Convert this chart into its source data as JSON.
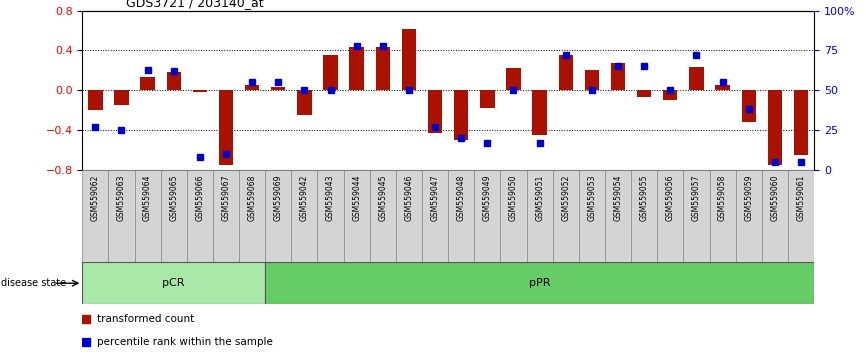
{
  "title": "GDS3721 / 203140_at",
  "samples": [
    "GSM559062",
    "GSM559063",
    "GSM559064",
    "GSM559065",
    "GSM559066",
    "GSM559067",
    "GSM559068",
    "GSM559069",
    "GSM559042",
    "GSM559043",
    "GSM559044",
    "GSM559045",
    "GSM559046",
    "GSM559047",
    "GSM559048",
    "GSM559049",
    "GSM559050",
    "GSM559051",
    "GSM559052",
    "GSM559053",
    "GSM559054",
    "GSM559055",
    "GSM559056",
    "GSM559057",
    "GSM559058",
    "GSM559059",
    "GSM559060",
    "GSM559061"
  ],
  "bar_values": [
    -0.2,
    -0.15,
    0.13,
    0.18,
    -0.02,
    -0.75,
    0.05,
    0.03,
    -0.25,
    0.35,
    0.43,
    0.43,
    0.62,
    -0.43,
    -0.5,
    -0.18,
    0.22,
    -0.45,
    0.35,
    0.2,
    0.27,
    -0.07,
    -0.1,
    0.23,
    0.05,
    -0.32,
    -0.75,
    -0.65
  ],
  "percentile_values": [
    27,
    25,
    63,
    62,
    8,
    10,
    55,
    55,
    50,
    50,
    78,
    78,
    50,
    27,
    20,
    17,
    50,
    17,
    72,
    50,
    65,
    65,
    50,
    72,
    55,
    38,
    5,
    5
  ],
  "groups": [
    {
      "label": "pCR",
      "start": 0,
      "end": 7,
      "color": "#aae8aa"
    },
    {
      "label": "pPR",
      "start": 7,
      "end": 28,
      "color": "#66cc66"
    }
  ],
  "ylim": [
    -0.8,
    0.8
  ],
  "yticks": [
    -0.8,
    -0.4,
    0.0,
    0.4,
    0.8
  ],
  "right_yticks": [
    0,
    25,
    50,
    75,
    100
  ],
  "right_ytick_labels": [
    "0",
    "25",
    "50",
    "75",
    "100%"
  ],
  "bar_color": "#aa1100",
  "dot_color": "#0000cc",
  "legend_items": [
    {
      "label": "transformed count",
      "color": "#aa1100"
    },
    {
      "label": "percentile rank within the sample",
      "color": "#0000cc"
    }
  ]
}
